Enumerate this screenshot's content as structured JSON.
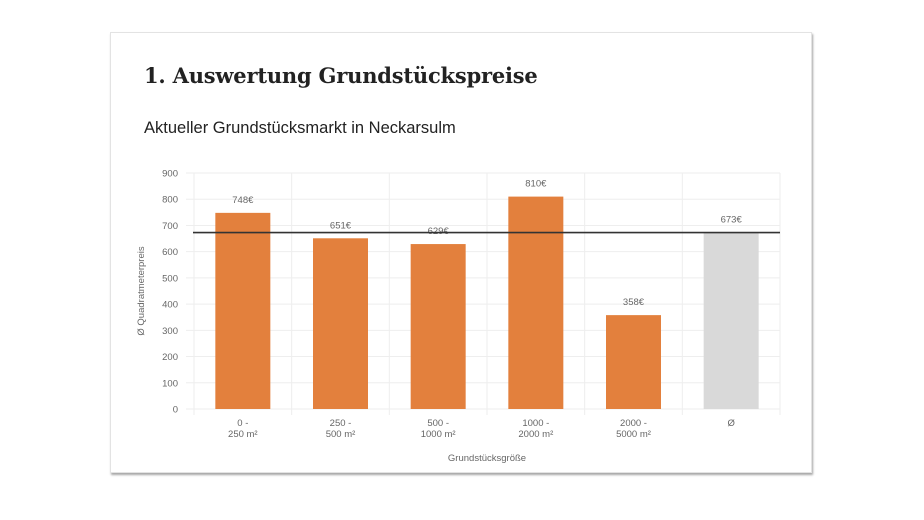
{
  "page": {
    "heading": "1. Auswertung Grundstückspreise",
    "chart_title": "Aktueller Grundstücksmarkt in Neckarsulm"
  },
  "colors": {
    "bar": "#e3803d",
    "average_bar": "#d9d9d9",
    "average_line": "#333333",
    "grid": "#eeeeee",
    "axis_text": "#666666"
  },
  "chart_data": {
    "type": "bar",
    "title": "Aktueller Grundstücksmarkt in Neckarsulm",
    "xlabel": "Grundstücksgröße",
    "ylabel": "Ø Quadratmeterpreis",
    "ylim": [
      0,
      900
    ],
    "yticks": [
      0,
      100,
      200,
      300,
      400,
      500,
      600,
      700,
      800,
      900
    ],
    "grid": true,
    "legend": "none",
    "categories": [
      [
        "0 -",
        "250 m²"
      ],
      [
        "250 -",
        "500 m²"
      ],
      [
        "500 -",
        "1000 m²"
      ],
      [
        "1000 -",
        "2000 m²"
      ],
      [
        "2000 -",
        "5000 m²"
      ],
      [
        "Ø"
      ]
    ],
    "values": [
      748,
      651,
      629,
      810,
      358,
      673
    ],
    "data_labels": [
      "748€",
      "651€",
      "629€",
      "810€",
      "358€",
      "673€"
    ],
    "highlight_average_category": true,
    "reference_line": {
      "value": 673,
      "label": "Ø"
    }
  }
}
